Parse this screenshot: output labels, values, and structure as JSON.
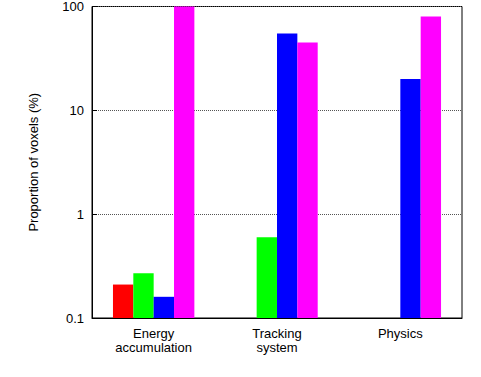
{
  "chart_data": {
    "type": "bar",
    "y_label": "Proportion of voxels (%)",
    "categories": [
      "Energy\naccumulation",
      "Tracking\nsystem",
      "Physics"
    ],
    "series": [
      {
        "color": "#ff0000",
        "values": [
          0.21,
          null,
          null
        ]
      },
      {
        "color": "#00ff00",
        "values": [
          0.27,
          0.6,
          null
        ]
      },
      {
        "color": "#0000ff",
        "values": [
          0.16,
          55,
          20
        ]
      },
      {
        "color": "#ff00ff",
        "values": [
          100,
          45,
          80
        ]
      }
    ],
    "log": "y",
    "ylim": [
      0.1,
      100
    ],
    "yticks": [
      0.1,
      1,
      10,
      100
    ],
    "grid": true
  }
}
